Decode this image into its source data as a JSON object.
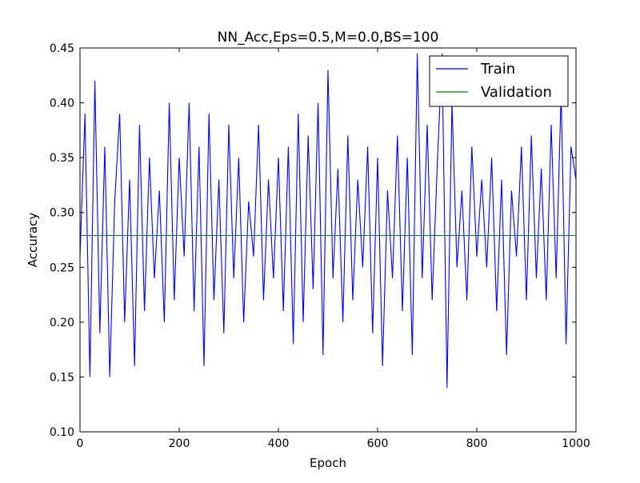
{
  "chart_data": {
    "type": "line",
    "title": "NN_Acc,Eps=0.5,M=0.0,BS=100",
    "xlabel": "Epoch",
    "ylabel": "Accuracy",
    "xlim": [
      0,
      1000
    ],
    "ylim": [
      0.1,
      0.45
    ],
    "x_ticks": [
      0,
      200,
      400,
      600,
      800,
      1000
    ],
    "y_ticks": [
      0.1,
      0.15,
      0.2,
      0.25,
      0.3,
      0.35,
      0.4,
      0.45
    ],
    "x_tick_labels": [
      "0",
      "200",
      "400",
      "600",
      "800",
      "1000"
    ],
    "y_tick_labels": [
      "0.10",
      "0.15",
      "0.20",
      "0.25",
      "0.30",
      "0.35",
      "0.40",
      "0.45"
    ],
    "grid": false,
    "legend": {
      "position": "top-right",
      "entries": [
        {
          "label": "Train",
          "color": "#0000ff"
        },
        {
          "label": "Validation",
          "color": "#008000"
        }
      ]
    },
    "series": [
      {
        "name": "Train",
        "color": "#0000ff",
        "x": [
          0,
          10,
          20,
          30,
          40,
          50,
          60,
          70,
          80,
          90,
          100,
          110,
          120,
          130,
          140,
          150,
          160,
          170,
          180,
          190,
          200,
          210,
          220,
          230,
          240,
          250,
          260,
          270,
          280,
          290,
          300,
          310,
          320,
          330,
          340,
          350,
          360,
          370,
          380,
          390,
          400,
          410,
          420,
          430,
          440,
          450,
          460,
          470,
          480,
          490,
          500,
          510,
          520,
          530,
          540,
          550,
          560,
          570,
          580,
          590,
          600,
          610,
          620,
          630,
          640,
          650,
          660,
          670,
          680,
          690,
          700,
          710,
          720,
          730,
          740,
          750,
          760,
          770,
          780,
          790,
          800,
          810,
          820,
          830,
          840,
          850,
          860,
          870,
          880,
          890,
          900,
          910,
          920,
          930,
          940,
          950,
          960,
          970,
          980,
          990,
          1000
        ],
        "y": [
          0.26,
          0.39,
          0.15,
          0.42,
          0.19,
          0.36,
          0.15,
          0.31,
          0.39,
          0.2,
          0.33,
          0.16,
          0.38,
          0.21,
          0.35,
          0.24,
          0.32,
          0.2,
          0.4,
          0.22,
          0.35,
          0.26,
          0.4,
          0.21,
          0.36,
          0.16,
          0.39,
          0.22,
          0.33,
          0.19,
          0.38,
          0.24,
          0.35,
          0.2,
          0.31,
          0.26,
          0.38,
          0.22,
          0.33,
          0.24,
          0.35,
          0.21,
          0.36,
          0.18,
          0.39,
          0.2,
          0.37,
          0.23,
          0.4,
          0.17,
          0.43,
          0.24,
          0.34,
          0.2,
          0.37,
          0.22,
          0.33,
          0.25,
          0.36,
          0.19,
          0.35,
          0.16,
          0.32,
          0.24,
          0.37,
          0.21,
          0.35,
          0.17,
          0.445,
          0.24,
          0.38,
          0.22,
          0.34,
          0.445,
          0.14,
          0.4,
          0.25,
          0.32,
          0.22,
          0.36,
          0.26,
          0.33,
          0.25,
          0.35,
          0.21,
          0.33,
          0.17,
          0.32,
          0.26,
          0.36,
          0.22,
          0.37,
          0.24,
          0.34,
          0.22,
          0.38,
          0.24,
          0.41,
          0.18,
          0.36,
          0.33
        ]
      },
      {
        "name": "Validation",
        "color": "#008000",
        "x": [
          0,
          1000
        ],
        "y": [
          0.279,
          0.279
        ]
      }
    ]
  }
}
